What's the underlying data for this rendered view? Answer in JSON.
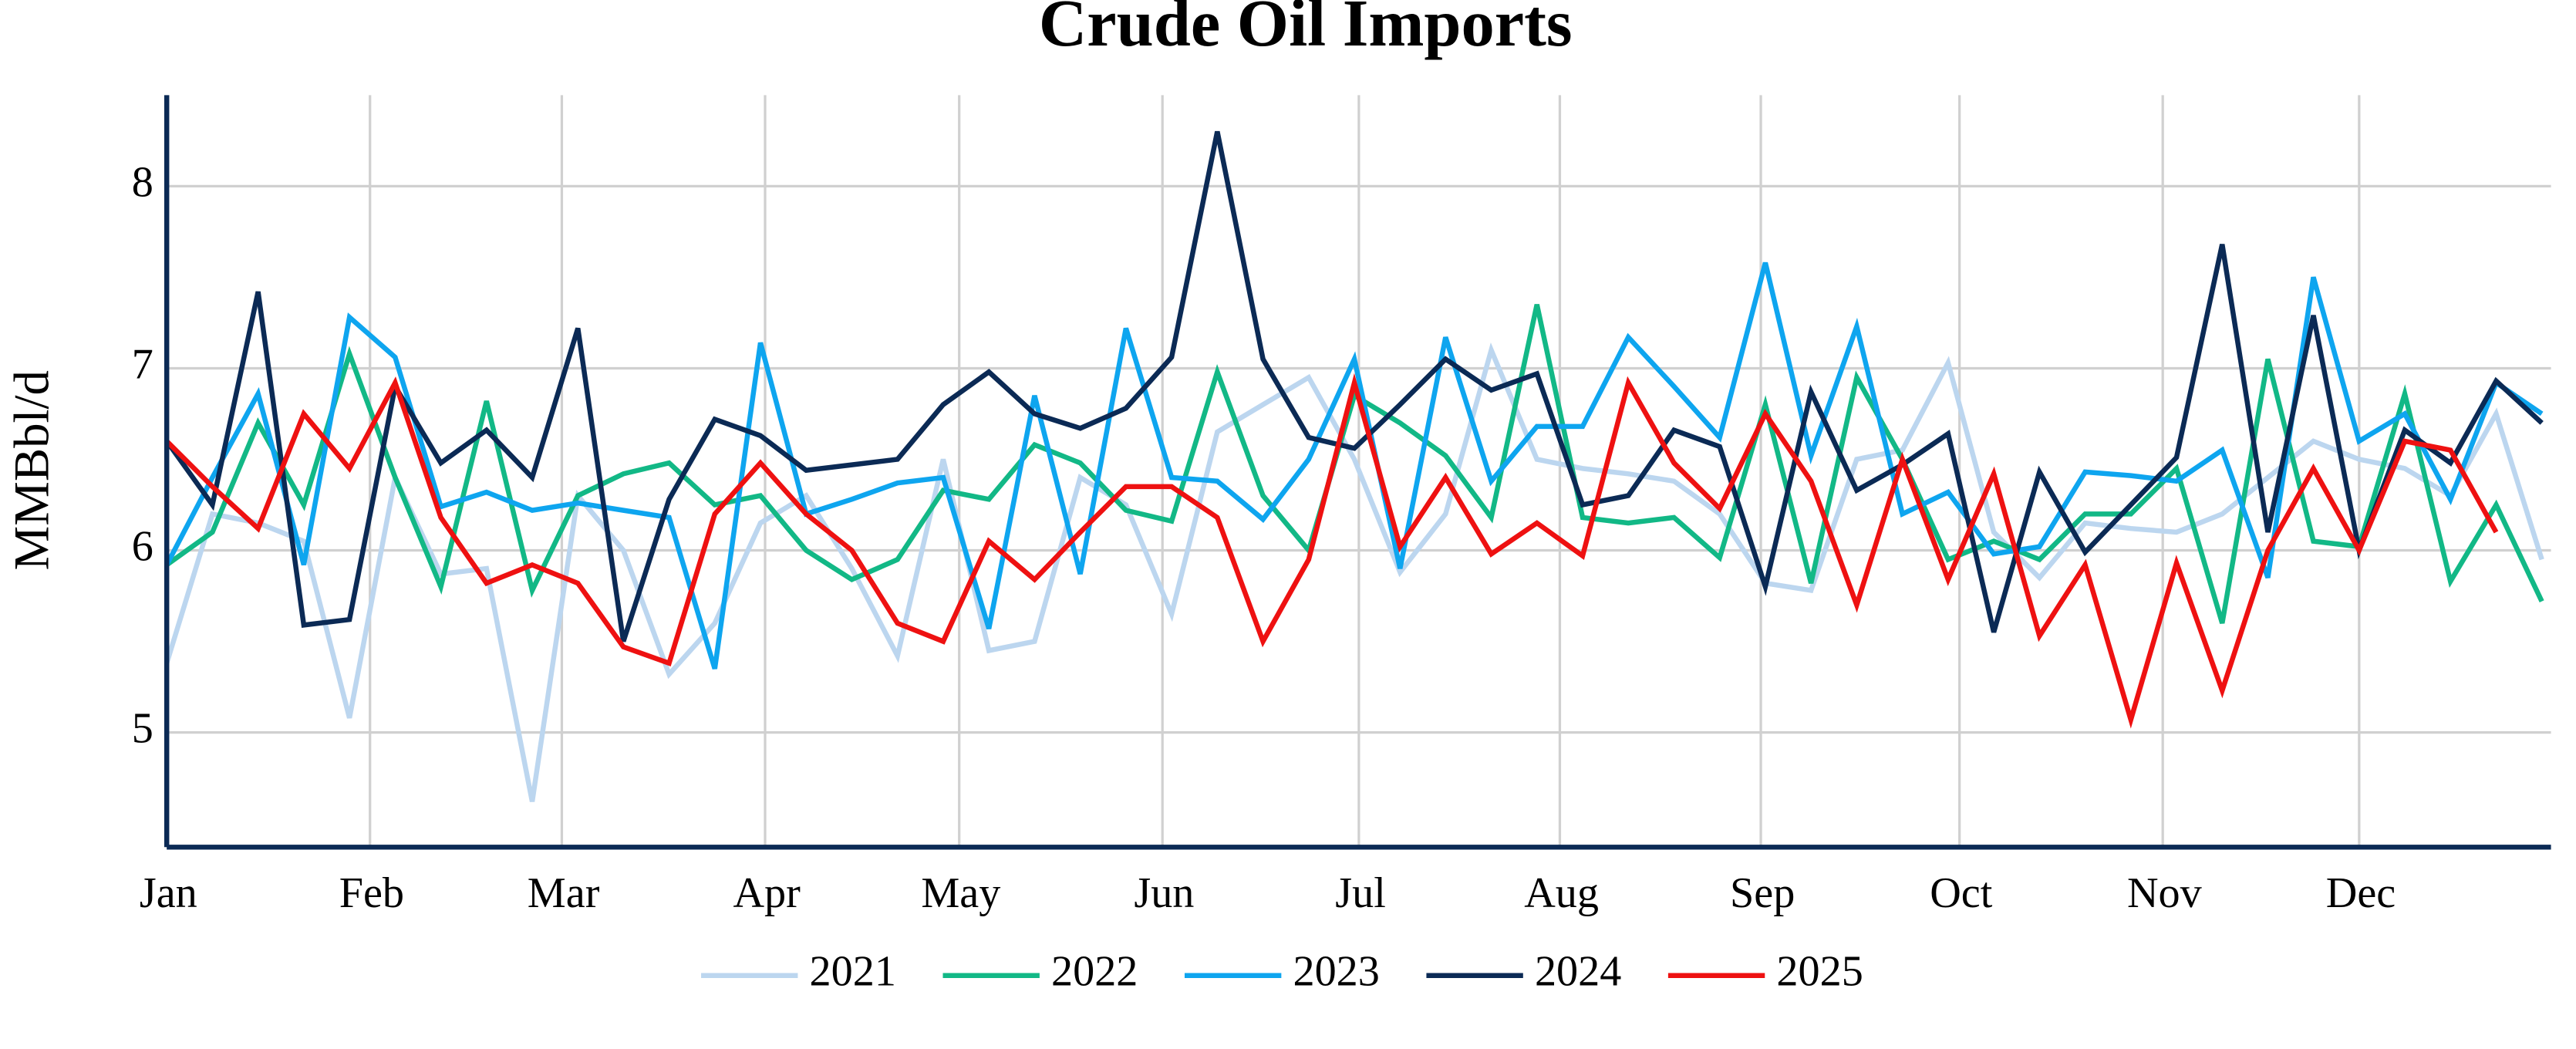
{
  "chart_data": {
    "type": "line",
    "title": "Crude Oil Imports",
    "y_label": "MMBbl/d",
    "x": [
      1,
      2,
      3,
      4,
      5,
      6,
      7,
      8,
      9,
      10,
      11,
      12,
      13,
      14,
      15,
      16,
      17,
      18,
      19,
      20,
      21,
      22,
      23,
      24,
      25,
      26,
      27,
      28,
      29,
      30,
      31,
      32,
      33,
      34,
      35,
      36,
      37,
      38,
      39,
      40,
      41,
      42,
      43,
      44,
      45,
      46,
      47,
      48,
      49,
      50,
      51,
      52,
      53
    ],
    "xlim": [
      1,
      53.2
    ],
    "xticks": [
      {
        "value": 1,
        "label": "Jan"
      },
      {
        "value": 5.45,
        "label": "Feb"
      },
      {
        "value": 9.65,
        "label": "Mar"
      },
      {
        "value": 14.1,
        "label": "Apr"
      },
      {
        "value": 18.35,
        "label": "May"
      },
      {
        "value": 22.8,
        "label": "Jun"
      },
      {
        "value": 27.1,
        "label": "Jul"
      },
      {
        "value": 31.5,
        "label": "Aug"
      },
      {
        "value": 35.9,
        "label": "Sep"
      },
      {
        "value": 40.25,
        "label": "Oct"
      },
      {
        "value": 44.7,
        "label": "Nov"
      },
      {
        "value": 49.0,
        "label": "Dec"
      }
    ],
    "ylim": [
      4.37,
      8.5
    ],
    "yticks": [
      5,
      6,
      7,
      8
    ],
    "grid": true,
    "legend": "bottom",
    "series": [
      {
        "name": "2021",
        "color": "#bcd6ef",
        "values": [
          5.38,
          6.2,
          6.15,
          6.05,
          5.08,
          6.4,
          5.87,
          5.9,
          4.62,
          6.3,
          6.0,
          5.32,
          5.6,
          6.15,
          6.3,
          5.9,
          5.42,
          6.5,
          5.45,
          5.5,
          6.4,
          6.25,
          5.65,
          6.65,
          6.8,
          6.95,
          6.5,
          5.88,
          6.2,
          7.1,
          6.5,
          6.45,
          6.42,
          6.38,
          6.2,
          5.82,
          5.78,
          6.5,
          6.55,
          7.03,
          6.1,
          5.85,
          6.15,
          6.12,
          6.1,
          6.2,
          6.4,
          6.6,
          6.5,
          6.45,
          6.3,
          6.75,
          5.95
        ]
      },
      {
        "name": "2022",
        "color": "#12b886",
        "values": [
          5.92,
          6.1,
          6.7,
          6.25,
          7.08,
          6.4,
          5.8,
          6.82,
          5.78,
          6.3,
          6.42,
          6.48,
          6.25,
          6.3,
          6.0,
          5.84,
          5.95,
          6.33,
          6.28,
          6.58,
          6.48,
          6.22,
          6.16,
          6.98,
          6.3,
          6.0,
          6.85,
          6.7,
          6.52,
          6.18,
          7.35,
          6.18,
          6.15,
          6.18,
          5.96,
          6.8,
          5.82,
          6.95,
          6.5,
          5.95,
          6.05,
          5.95,
          6.2,
          6.2,
          6.45,
          5.6,
          7.05,
          6.05,
          6.02,
          6.86,
          5.83,
          6.25,
          5.72
        ]
      },
      {
        "name": "2023",
        "color": "#0ea5ef",
        "values": [
          5.92,
          6.4,
          6.86,
          5.92,
          7.28,
          7.06,
          6.24,
          6.32,
          6.22,
          6.26,
          6.22,
          6.18,
          5.35,
          7.14,
          6.2,
          6.28,
          6.37,
          6.4,
          5.57,
          6.85,
          5.87,
          7.22,
          6.4,
          6.38,
          6.17,
          6.5,
          7.05,
          5.9,
          7.17,
          6.38,
          6.68,
          6.68,
          7.17,
          6.9,
          6.62,
          7.58,
          6.52,
          7.23,
          6.2,
          6.32,
          5.98,
          6.02,
          6.43,
          6.41,
          6.38,
          6.55,
          5.85,
          7.5,
          6.6,
          6.75,
          6.28,
          6.92,
          6.75
        ]
      },
      {
        "name": "2024",
        "color": "#0b2a55",
        "values": [
          6.6,
          6.25,
          7.42,
          5.59,
          5.62,
          6.9,
          6.48,
          6.66,
          6.4,
          7.22,
          5.5,
          6.28,
          6.72,
          6.63,
          6.44,
          6.47,
          6.5,
          6.8,
          6.98,
          6.75,
          6.67,
          6.78,
          7.06,
          8.3,
          7.05,
          6.62,
          6.56,
          6.8,
          7.05,
          6.88,
          6.97,
          6.25,
          6.3,
          6.66,
          6.57,
          5.8,
          6.87,
          6.33,
          6.47,
          6.64,
          5.55,
          6.43,
          5.99,
          6.25,
          6.51,
          7.68,
          6.1,
          7.29,
          6.0,
          6.66,
          6.48,
          6.93,
          6.7
        ]
      },
      {
        "name": "2025",
        "color": "#ee1111",
        "values": [
          6.6,
          6.35,
          6.12,
          6.75,
          6.45,
          6.92,
          6.18,
          5.82,
          5.92,
          5.82,
          5.47,
          5.38,
          6.2,
          6.48,
          6.2,
          6.0,
          5.6,
          5.5,
          6.05,
          5.84,
          6.1,
          6.35,
          6.35,
          6.18,
          5.5,
          5.95,
          6.92,
          6.02,
          6.4,
          5.98,
          6.15,
          5.97,
          6.92,
          6.48,
          6.23,
          6.75,
          6.38,
          5.7,
          6.5,
          5.84,
          6.42,
          5.53,
          5.92,
          5.07,
          5.93,
          5.23,
          6.0,
          6.45,
          6.0,
          6.6,
          6.55,
          6.1,
          null
        ]
      }
    ]
  }
}
